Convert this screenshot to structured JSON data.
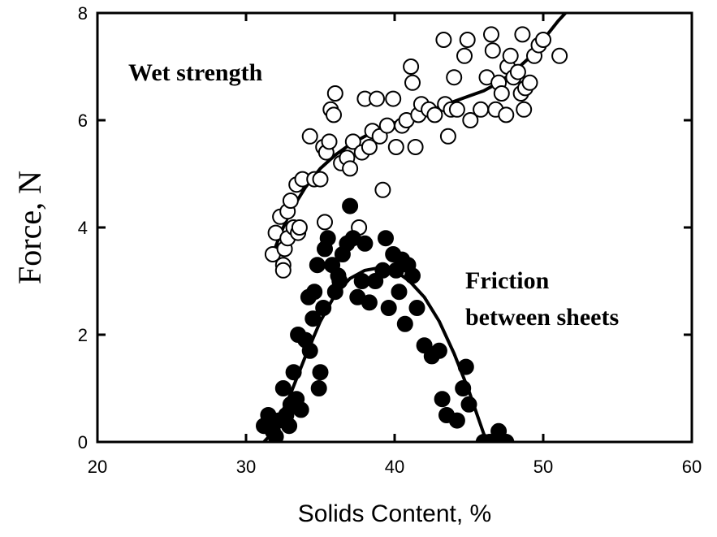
{
  "chart_data": {
    "type": "scatter",
    "title": "",
    "xlabel": "Solids Content, %",
    "ylabel": "Force, N",
    "xlim": [
      20,
      60
    ],
    "ylim": [
      0,
      8
    ],
    "xticks": [
      "20",
      "30",
      "40",
      "50",
      "60"
    ],
    "yticks": [
      "0",
      "2",
      "4",
      "6",
      "8"
    ],
    "grid": false,
    "legend": "none",
    "annotations": {
      "wet": "Wet strength",
      "friction_line1": "Friction",
      "friction_line2": "between sheets"
    },
    "series": [
      {
        "marker": "open-circle",
        "points": [
          [
            31.8,
            3.5
          ],
          [
            32.0,
            3.9
          ],
          [
            32.3,
            4.2
          ],
          [
            32.5,
            3.3
          ],
          [
            32.5,
            3.2
          ],
          [
            32.6,
            3.6
          ],
          [
            32.8,
            3.8
          ],
          [
            32.8,
            4.3
          ],
          [
            33.0,
            4.5
          ],
          [
            33.2,
            4.0
          ],
          [
            33.4,
            4.8
          ],
          [
            33.5,
            3.9
          ],
          [
            33.6,
            4.0
          ],
          [
            33.8,
            4.9
          ],
          [
            34.3,
            5.7
          ],
          [
            34.6,
            4.9
          ],
          [
            35.0,
            4.9
          ],
          [
            35.2,
            5.5
          ],
          [
            35.4,
            5.4
          ],
          [
            35.6,
            5.6
          ],
          [
            35.7,
            6.2
          ],
          [
            35.9,
            6.1
          ],
          [
            36.0,
            6.5
          ],
          [
            35.3,
            4.1
          ],
          [
            36.4,
            5.2
          ],
          [
            36.8,
            5.3
          ],
          [
            37.0,
            5.1
          ],
          [
            37.2,
            5.6
          ],
          [
            37.6,
            4.0
          ],
          [
            37.8,
            5.4
          ],
          [
            38.0,
            6.4
          ],
          [
            38.3,
            5.5
          ],
          [
            38.5,
            5.8
          ],
          [
            38.8,
            6.4
          ],
          [
            39.0,
            5.7
          ],
          [
            39.2,
            4.7
          ],
          [
            39.5,
            5.9
          ],
          [
            39.9,
            6.4
          ],
          [
            40.1,
            5.5
          ],
          [
            40.5,
            5.9
          ],
          [
            40.8,
            6.0
          ],
          [
            41.1,
            7.0
          ],
          [
            41.2,
            6.7
          ],
          [
            41.4,
            5.5
          ],
          [
            41.6,
            6.1
          ],
          [
            41.8,
            6.3
          ],
          [
            42.3,
            6.2
          ],
          [
            42.7,
            6.1
          ],
          [
            43.3,
            7.5
          ],
          [
            43.4,
            6.3
          ],
          [
            43.6,
            5.7
          ],
          [
            43.8,
            6.2
          ],
          [
            44.0,
            6.8
          ],
          [
            44.2,
            6.2
          ],
          [
            44.7,
            7.2
          ],
          [
            44.9,
            7.5
          ],
          [
            45.1,
            6.0
          ],
          [
            45.8,
            6.2
          ],
          [
            46.2,
            6.8
          ],
          [
            46.5,
            7.6
          ],
          [
            46.6,
            7.3
          ],
          [
            46.8,
            6.2
          ],
          [
            47.0,
            6.7
          ],
          [
            47.2,
            6.5
          ],
          [
            47.5,
            6.1
          ],
          [
            47.6,
            7.0
          ],
          [
            47.8,
            7.2
          ],
          [
            48.0,
            6.8
          ],
          [
            48.3,
            6.9
          ],
          [
            48.5,
            6.5
          ],
          [
            48.6,
            7.6
          ],
          [
            48.8,
            6.6
          ],
          [
            48.7,
            6.2
          ],
          [
            49.1,
            6.7
          ],
          [
            49.4,
            7.2
          ],
          [
            49.7,
            7.4
          ],
          [
            50.0,
            7.5
          ],
          [
            51.1,
            7.2
          ]
        ],
        "fit": [
          [
            32.0,
            3.65
          ],
          [
            32.5,
            4.0
          ],
          [
            33.0,
            4.3
          ],
          [
            34.0,
            4.75
          ],
          [
            35.0,
            5.1
          ],
          [
            36.0,
            5.35
          ],
          [
            37.0,
            5.55
          ],
          [
            38.0,
            5.7
          ],
          [
            39.0,
            5.85
          ],
          [
            40.0,
            5.95
          ],
          [
            41.0,
            6.05
          ],
          [
            42.0,
            6.15
          ],
          [
            43.0,
            6.25
          ],
          [
            44.0,
            6.35
          ],
          [
            45.0,
            6.45
          ],
          [
            46.0,
            6.55
          ],
          [
            47.0,
            6.7
          ],
          [
            48.0,
            6.9
          ],
          [
            49.0,
            7.15
          ],
          [
            50.0,
            7.5
          ],
          [
            51.0,
            7.85
          ],
          [
            51.5,
            8.0
          ]
        ]
      },
      {
        "marker": "filled-circle",
        "points": [
          [
            31.2,
            0.3
          ],
          [
            31.5,
            0.5
          ],
          [
            31.8,
            0.2
          ],
          [
            32.0,
            0.1
          ],
          [
            32.2,
            0.4
          ],
          [
            32.5,
            1.0
          ],
          [
            32.7,
            0.5
          ],
          [
            32.9,
            0.3
          ],
          [
            33.0,
            0.7
          ],
          [
            33.2,
            1.3
          ],
          [
            33.4,
            0.8
          ],
          [
            33.5,
            2.0
          ],
          [
            33.7,
            0.6
          ],
          [
            34.0,
            1.9
          ],
          [
            34.2,
            2.7
          ],
          [
            34.3,
            1.7
          ],
          [
            34.5,
            2.3
          ],
          [
            34.6,
            2.8
          ],
          [
            34.8,
            3.3
          ],
          [
            34.9,
            1.0
          ],
          [
            35.0,
            1.3
          ],
          [
            35.2,
            2.5
          ],
          [
            35.3,
            3.6
          ],
          [
            35.5,
            3.8
          ],
          [
            35.8,
            3.3
          ],
          [
            36.0,
            2.8
          ],
          [
            36.2,
            3.1
          ],
          [
            36.3,
            3.0
          ],
          [
            36.5,
            3.5
          ],
          [
            36.8,
            3.7
          ],
          [
            37.0,
            4.4
          ],
          [
            37.2,
            3.8
          ],
          [
            37.5,
            2.7
          ],
          [
            37.8,
            3.0
          ],
          [
            38.0,
            3.7
          ],
          [
            38.3,
            2.6
          ],
          [
            38.7,
            3.0
          ],
          [
            39.2,
            3.2
          ],
          [
            39.4,
            3.8
          ],
          [
            39.6,
            2.5
          ],
          [
            39.9,
            3.5
          ],
          [
            40.1,
            3.2
          ],
          [
            40.3,
            2.8
          ],
          [
            40.5,
            3.4
          ],
          [
            40.7,
            2.2
          ],
          [
            40.9,
            3.3
          ],
          [
            41.2,
            3.1
          ],
          [
            41.5,
            2.5
          ],
          [
            42.0,
            1.8
          ],
          [
            42.5,
            1.6
          ],
          [
            43.0,
            1.7
          ],
          [
            43.2,
            0.8
          ],
          [
            43.5,
            0.5
          ],
          [
            44.2,
            0.4
          ],
          [
            44.6,
            1.0
          ],
          [
            44.8,
            1.4
          ],
          [
            45.0,
            0.7
          ],
          [
            46.0,
            0.0
          ],
          [
            46.4,
            0.0
          ],
          [
            46.8,
            0.0
          ],
          [
            47.2,
            0.0
          ],
          [
            47.5,
            0.0
          ],
          [
            47.0,
            0.2
          ]
        ],
        "fit": [
          [
            31.2,
            0.0
          ],
          [
            31.6,
            0.12
          ],
          [
            32.0,
            0.3
          ],
          [
            33.0,
            0.9
          ],
          [
            34.0,
            1.6
          ],
          [
            35.0,
            2.25
          ],
          [
            36.0,
            2.75
          ],
          [
            37.0,
            3.05
          ],
          [
            38.0,
            3.2
          ],
          [
            39.0,
            3.25
          ],
          [
            40.0,
            3.2
          ],
          [
            41.0,
            3.0
          ],
          [
            42.0,
            2.7
          ],
          [
            43.0,
            2.25
          ],
          [
            44.0,
            1.65
          ],
          [
            45.0,
            0.95
          ],
          [
            45.5,
            0.55
          ],
          [
            46.0,
            0.15
          ],
          [
            46.2,
            0.0
          ]
        ]
      }
    ]
  }
}
